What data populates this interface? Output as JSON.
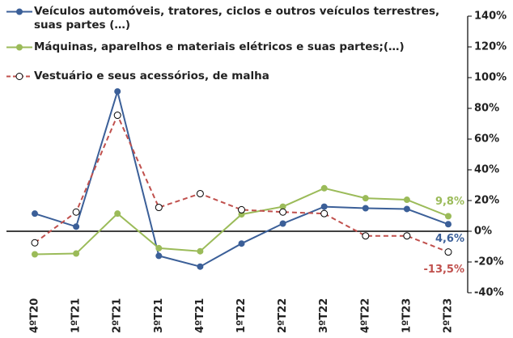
{
  "chart_data": {
    "type": "line",
    "categories": [
      "4ºT20",
      "1ºT21",
      "2ºT21",
      "3ºT21",
      "4ºT21",
      "1ºT22",
      "2ºT22",
      "3ºT22",
      "4ºT22",
      "1ºT23",
      "2ºT23"
    ],
    "series": [
      {
        "name": "Veículos automóveis, tratores, ciclos e outros veículos terrestres, suas partes (…)",
        "color": "#3b5f98",
        "dashed": false,
        "marker": "filled",
        "values": [
          11.5,
          3,
          91,
          -16,
          -23,
          -8,
          5,
          16,
          15,
          14.5,
          4.6
        ],
        "value_labels": [
          null,
          null,
          null,
          null,
          null,
          null,
          null,
          null,
          null,
          null,
          "4,6%"
        ]
      },
      {
        "name": "Máquinas, aparelhos e materiais elétricos e suas partes;(…)",
        "color": "#9bbb59",
        "dashed": false,
        "marker": "filled",
        "values": [
          -15,
          -14.5,
          11.5,
          -11,
          -13,
          11,
          16,
          28,
          21.5,
          20.5,
          9.8
        ],
        "value_labels": [
          null,
          null,
          null,
          null,
          null,
          null,
          null,
          null,
          null,
          null,
          "9,8%"
        ]
      },
      {
        "name": "Vestuário e seus acessórios, de malha",
        "color": "#c0504d",
        "dashed": true,
        "marker": "open",
        "values": [
          -7.5,
          12.5,
          75.5,
          15.5,
          24.5,
          14,
          12.5,
          11.5,
          -3,
          -3,
          -13.5
        ],
        "value_labels": [
          null,
          null,
          null,
          null,
          null,
          null,
          null,
          null,
          null,
          null,
          "-13,5%"
        ]
      }
    ],
    "ylim": [
      -40,
      140
    ],
    "yticks": [
      {
        "value": -40,
        "label": "-40%"
      },
      {
        "value": -20,
        "label": "-20%"
      },
      {
        "value": 0,
        "label": "0%"
      },
      {
        "value": 20,
        "label": "20%"
      },
      {
        "value": 40,
        "label": "40%"
      },
      {
        "value": 60,
        "label": "60%"
      },
      {
        "value": 80,
        "label": "80%"
      },
      {
        "value": 100,
        "label": "100%"
      },
      {
        "value": 120,
        "label": "120%"
      },
      {
        "value": 140,
        "label": "140%"
      }
    ],
    "grid": false
  }
}
